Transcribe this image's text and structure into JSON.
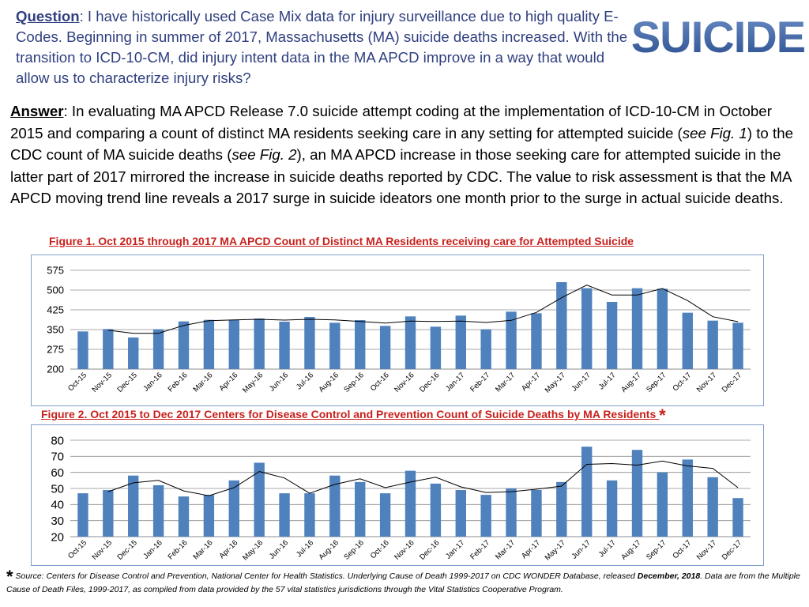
{
  "header": {
    "question_label": "Question",
    "question_text": ": I have historically used Case Mix data for injury surveillance due to high quality E-Codes. Beginning in summer of 2017,  Massachusetts (MA) suicide deaths increased.  With the transition to ICD-10-CM, did injury intent data in the MA APCD improve in a way that would allow us to characterize injury risks?",
    "logo_text": "SUICIDE"
  },
  "answer": {
    "label": "Answer",
    "part1": ": In evaluating MA APCD Release 7.0 suicide attempt coding at the implementation of ICD-10-CM in October 2015 and comparing a count of distinct MA residents seeking care in any setting for attempted suicide (",
    "ref1": "see Fig. 1",
    "part2": ") to the CDC count of MA suicide deaths (",
    "ref2": "see Fig. 2",
    "part3": "), an MA APCD increase in those seeking care for attempted suicide in the latter part of 2017 mirrored the increase in suicide deaths reported by CDC. The value to risk assessment is that the MA APCD moving trend line reveals a 2017 surge in suicide ideators one month prior to the surge in actual suicide deaths."
  },
  "colors": {
    "bar": "#4f81bd",
    "trend": "#000000",
    "title": "#c8211d",
    "text": "#2f3f7f"
  },
  "chart_data": [
    {
      "type": "bar",
      "title": "Figure 1. Oct 2015 through 2017  MA APCD Count of Distinct MA Residents receiving care for Attempted Suicide",
      "categories": [
        "Oct-15",
        "Nov-15",
        "Dec-15",
        "Jan-16",
        "Feb-16",
        "Mar-16",
        "Apr-16",
        "May-16",
        "Jun-16",
        "Jul-16",
        "Aug-16",
        "Sep-16",
        "Oct-16",
        "Nov-16",
        "Dec-16",
        "Jan-17",
        "Feb-17",
        "Mar-17",
        "Apr-17",
        "May-17",
        "Jun-17",
        "Jul-17",
        "Aug-17",
        "Sep-17",
        "Oct-17",
        "Nov-17",
        "Dec-17"
      ],
      "values": [
        343,
        352,
        320,
        351,
        381,
        387,
        386,
        392,
        380,
        398,
        376,
        386,
        364,
        400,
        361,
        403,
        351,
        418,
        412,
        530,
        507,
        455,
        507,
        505,
        414,
        384,
        376
      ],
      "trend": [
        null,
        348,
        336,
        336,
        366,
        384,
        387,
        389,
        386,
        389,
        387,
        381,
        375,
        382,
        381,
        382,
        377,
        385,
        415,
        471,
        519,
        481,
        481,
        506,
        460,
        399,
        380
      ],
      "ylim": [
        200,
        575
      ],
      "yticks": [
        200,
        275,
        350,
        425,
        500,
        575
      ],
      "grid": true
    },
    {
      "type": "bar",
      "title": "Figure 2. Oct 2015 to Dec 2017 Centers for Disease Control and Prevention Count of Suicide Deaths by MA Residents",
      "title_marker": "*",
      "categories": [
        "Oct-15",
        "Nov-15",
        "Dec-15",
        "Jan-16",
        "Feb-16",
        "Mar-16",
        "Apr-16",
        "May-16",
        "Jun-16",
        "Jul-16",
        "Aug-16",
        "Sep-16",
        "Oct-16",
        "Nov-16",
        "Dec-16",
        "Jan-17",
        "Feb-17",
        "Mar-17",
        "Apr-17",
        "May-17",
        "Jun-17",
        "Jul-17",
        "Aug-17",
        "Sep-17",
        "Oct-17",
        "Nov-17",
        "Dec-17"
      ],
      "values": [
        47,
        49,
        58,
        52,
        45,
        46,
        55,
        66,
        47,
        47,
        58,
        54,
        47,
        61,
        53,
        49,
        46,
        50,
        49,
        54,
        76,
        55,
        74,
        60,
        68,
        57,
        44
      ],
      "trend": [
        null,
        48,
        53.5,
        55,
        48.5,
        45.5,
        50.5,
        60.5,
        56.5,
        47,
        52.5,
        56,
        50.5,
        54,
        57,
        51,
        47.5,
        48,
        49.5,
        51.5,
        65,
        65.5,
        64.5,
        67,
        64,
        62.5,
        50.5
      ],
      "ylim": [
        20,
        80
      ],
      "yticks": [
        20,
        30,
        40,
        50,
        60,
        70,
        80
      ],
      "grid": true
    }
  ],
  "footer": {
    "marker": "*",
    "source_lead": " Source: Centers for Disease Control and Prevention, National Center for Health Statistics. Underlying Cause of Death 1999-2017 on CDC WONDER Database, released ",
    "source_bold": "December, 2018",
    "source_tail": ". Data are from the Multiple Cause of Death Files, 1999-2017, as compiled from data provided by the 57 vital statistics jurisdictions through the Vital Statistics Cooperative Program."
  }
}
